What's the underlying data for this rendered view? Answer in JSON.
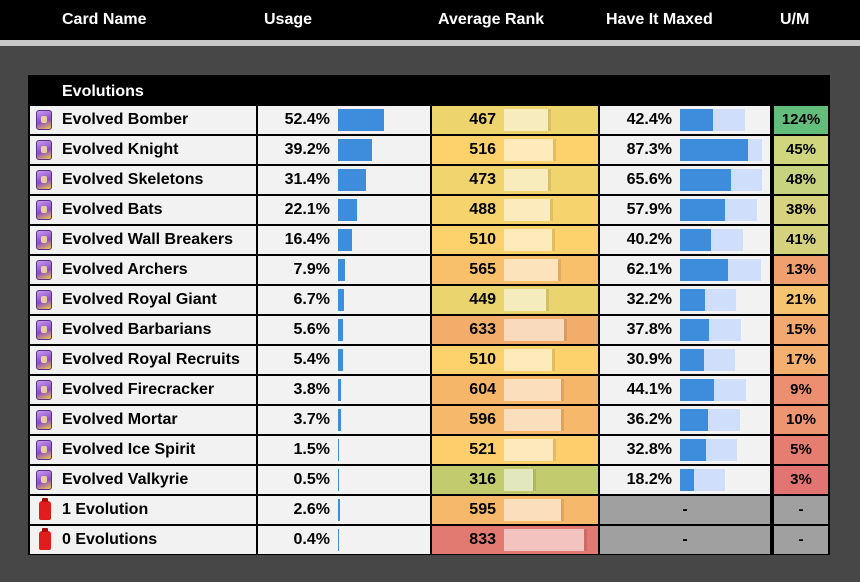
{
  "columns": {
    "card_name": "Card Name",
    "usage": "Usage",
    "average_rank": "Average Rank",
    "have_it_maxed": "Have It Maxed",
    "um": "U/M"
  },
  "section_title": "Evolutions",
  "rows": [
    {
      "name": "Evolved Bomber",
      "icon": "evolution-card-icon",
      "usage": "52.4%",
      "usage_value": 52.4,
      "rank": "467",
      "rank_value": 467,
      "rank_color": "#eed46d",
      "maxed": "42.4%",
      "maxed_value": 42.4,
      "um": "124%",
      "um_color": "#63be7b"
    },
    {
      "name": "Evolved Knight",
      "icon": "evolution-card-icon",
      "usage": "39.2%",
      "usage_value": 39.2,
      "rank": "516",
      "rank_value": 516,
      "rank_color": "#fdd26c",
      "maxed": "87.3%",
      "maxed_value": 87.3,
      "um": "45%",
      "um_color": "#cfd67e"
    },
    {
      "name": "Evolved Skeletons",
      "icon": "evolution-card-icon",
      "usage": "31.4%",
      "usage_value": 31.4,
      "rank": "473",
      "rank_value": 473,
      "rank_color": "#f0d46d",
      "maxed": "65.6%",
      "maxed_value": 65.6,
      "um": "48%",
      "um_color": "#c7d37e"
    },
    {
      "name": "Evolved Bats",
      "icon": "evolution-card-icon",
      "usage": "22.1%",
      "usage_value": 22.1,
      "rank": "488",
      "rank_value": 488,
      "rank_color": "#f6d36d",
      "maxed": "57.9%",
      "maxed_value": 57.9,
      "um": "38%",
      "um_color": "#d7d27d"
    },
    {
      "name": "Evolved Wall Breakers",
      "icon": "evolution-card-icon",
      "usage": "16.4%",
      "usage_value": 16.4,
      "rank": "510",
      "rank_value": 510,
      "rank_color": "#fdd26c",
      "maxed": "40.2%",
      "maxed_value": 40.2,
      "um": "41%",
      "um_color": "#d5d27d"
    },
    {
      "name": "Evolved Archers",
      "icon": "evolution-card-icon",
      "usage": "7.9%",
      "usage_value": 7.9,
      "rank": "565",
      "rank_value": 565,
      "rank_color": "#f9c06b",
      "maxed": "62.1%",
      "maxed_value": 62.1,
      "um": "13%",
      "um_color": "#f0a06f"
    },
    {
      "name": "Evolved Royal Giant",
      "icon": "evolution-card-icon",
      "usage": "6.7%",
      "usage_value": 6.7,
      "rank": "449",
      "rank_value": 449,
      "rank_color": "#e9d46d",
      "maxed": "32.2%",
      "maxed_value": 32.2,
      "um": "21%",
      "um_color": "#f6c46e"
    },
    {
      "name": "Evolved Barbarians",
      "icon": "evolution-card-icon",
      "usage": "5.6%",
      "usage_value": 5.6,
      "rank": "633",
      "rank_value": 633,
      "rank_color": "#f2ad6a",
      "maxed": "37.8%",
      "maxed_value": 37.8,
      "um": "15%",
      "um_color": "#f2a86f"
    },
    {
      "name": "Evolved Royal Recruits",
      "icon": "evolution-card-icon",
      "usage": "5.4%",
      "usage_value": 5.4,
      "rank": "510",
      "rank_value": 510,
      "rank_color": "#fdd26c",
      "maxed": "30.9%",
      "maxed_value": 30.9,
      "um": "17%",
      "um_color": "#f4b06f"
    },
    {
      "name": "Evolved Firecracker",
      "icon": "evolution-card-icon",
      "usage": "3.8%",
      "usage_value": 3.8,
      "rank": "604",
      "rank_value": 604,
      "rank_color": "#f5b66a",
      "maxed": "44.1%",
      "maxed_value": 44.1,
      "um": "9%",
      "um_color": "#ec8f70"
    },
    {
      "name": "Evolved Mortar",
      "icon": "evolution-card-icon",
      "usage": "3.7%",
      "usage_value": 3.7,
      "rank": "596",
      "rank_value": 596,
      "rank_color": "#f6b86a",
      "maxed": "36.2%",
      "maxed_value": 36.2,
      "um": "10%",
      "um_color": "#ed9470"
    },
    {
      "name": "Evolved Ice Spirit",
      "icon": "evolution-card-icon",
      "usage": "1.5%",
      "usage_value": 1.5,
      "rank": "521",
      "rank_value": 521,
      "rank_color": "#fdcf6c",
      "maxed": "32.8%",
      "maxed_value": 32.8,
      "um": "5%",
      "um_color": "#e67d71"
    },
    {
      "name": "Evolved Valkyrie",
      "icon": "evolution-card-icon",
      "usage": "0.5%",
      "usage_value": 0.5,
      "rank": "316",
      "rank_value": 316,
      "rank_color": "#c2cb6e",
      "maxed": "18.2%",
      "maxed_value": 18.2,
      "um": "3%",
      "um_color": "#e27471"
    },
    {
      "name": "1 Evolution",
      "icon": "elixir-bottle-icon",
      "usage": "2.6%",
      "usage_value": 2.6,
      "rank": "595",
      "rank_value": 595,
      "rank_color": "#f6b86a",
      "maxed": "-",
      "maxed_value": null,
      "um": "-",
      "um_color": "#a0a0a0"
    },
    {
      "name": "0 Evolutions",
      "icon": "elixir-bottle-icon",
      "usage": "0.4%",
      "usage_value": 0.4,
      "rank": "833",
      "rank_value": 833,
      "rank_color": "#e37a72",
      "maxed": "-",
      "maxed_value": null,
      "um": "-",
      "um_color": "#a0a0a0"
    }
  ]
}
